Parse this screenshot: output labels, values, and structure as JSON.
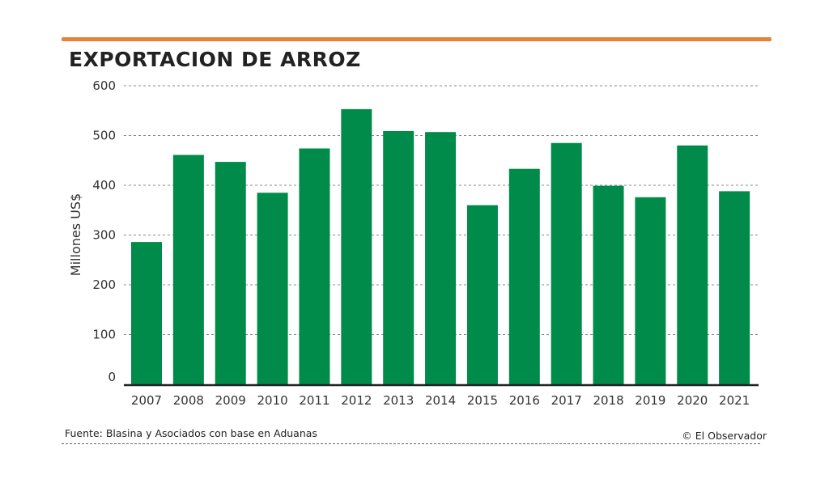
{
  "chart_data": {
    "type": "bar",
    "title": "EXPORTACION DE ARROZ",
    "xlabel": "",
    "ylabel": "Millones US$",
    "ylim": [
      0,
      600
    ],
    "yticks": [
      0,
      100,
      200,
      300,
      400,
      500,
      600
    ],
    "grid": true,
    "categories": [
      "2007",
      "2008",
      "2009",
      "2010",
      "2011",
      "2012",
      "2013",
      "2014",
      "2015",
      "2016",
      "2017",
      "2018",
      "2019",
      "2020",
      "2021"
    ],
    "values": [
      286,
      461,
      447,
      385,
      474,
      553,
      509,
      507,
      360,
      433,
      485,
      399,
      376,
      480,
      388
    ]
  },
  "colors": {
    "bar": "#008b4b",
    "accent_rule": "#e8823a",
    "grid": "#888888",
    "axis": "#222222"
  },
  "footer": {
    "source": "Fuente: Blasina y Asociados con base en Aduanas",
    "credit": "© El Observador"
  }
}
